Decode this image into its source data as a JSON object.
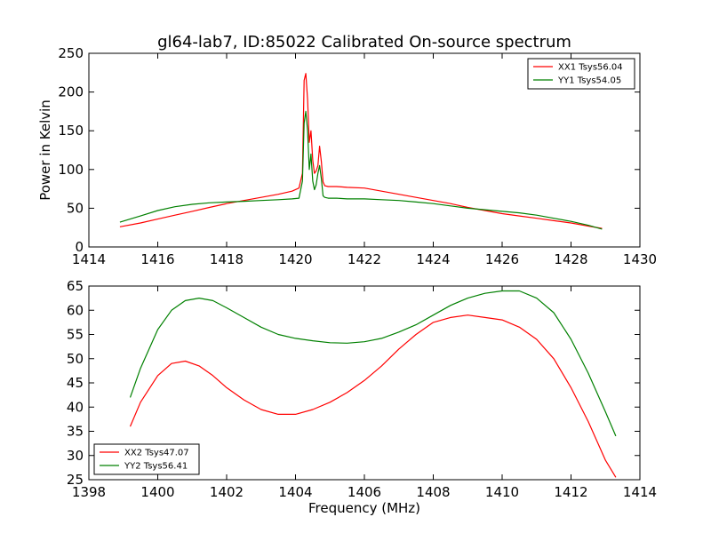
{
  "title": "gl64-lab7, ID:85022 Calibrated On-source spectrum",
  "chart_data": [
    {
      "type": "line",
      "title": "",
      "xlabel": "",
      "ylabel": "Power in Kelvin",
      "xlim": [
        1414,
        1430
      ],
      "ylim": [
        0,
        250
      ],
      "xticks": [
        "1414",
        "1416",
        "1418",
        "1420",
        "1422",
        "1424",
        "1426",
        "1428",
        "1430"
      ],
      "yticks": [
        "0",
        "50",
        "100",
        "150",
        "200",
        "250"
      ],
      "grid": false,
      "legend": "top-right",
      "series": [
        {
          "name": "XX1 Tsys56.04",
          "color": "#ff0000",
          "x": [
            1414.9,
            1415.5,
            1416.0,
            1416.5,
            1417.0,
            1417.5,
            1418.0,
            1418.5,
            1419.0,
            1419.5,
            1419.9,
            1420.1,
            1420.2,
            1420.25,
            1420.3,
            1420.35,
            1420.4,
            1420.45,
            1420.5,
            1420.55,
            1420.6,
            1420.65,
            1420.7,
            1420.75,
            1420.8,
            1420.85,
            1420.95,
            1421.2,
            1421.5,
            1422.0,
            1422.5,
            1423.0,
            1423.5,
            1424.0,
            1424.5,
            1425.0,
            1425.5,
            1426.0,
            1426.5,
            1427.0,
            1427.5,
            1428.0,
            1428.5,
            1428.9
          ],
          "y": [
            26,
            31,
            36,
            41,
            46,
            51,
            56,
            60,
            64,
            68,
            72,
            76,
            95,
            215,
            224,
            190,
            135,
            150,
            112,
            95,
            98,
            105,
            130,
            110,
            84,
            79,
            78,
            78,
            77,
            76,
            72,
            68,
            64,
            60,
            56,
            51,
            47,
            43,
            40,
            37,
            34,
            31,
            27,
            24
          ]
        },
        {
          "name": "YY1 Tsys54.05",
          "color": "#008000",
          "x": [
            1414.9,
            1415.5,
            1416.0,
            1416.5,
            1417.0,
            1417.5,
            1418.0,
            1418.5,
            1419.0,
            1419.5,
            1419.9,
            1420.1,
            1420.2,
            1420.25,
            1420.3,
            1420.35,
            1420.4,
            1420.45,
            1420.5,
            1420.55,
            1420.6,
            1420.65,
            1420.7,
            1420.75,
            1420.8,
            1420.85,
            1420.95,
            1421.2,
            1421.5,
            1422.0,
            1422.5,
            1423.0,
            1423.5,
            1424.0,
            1424.5,
            1425.0,
            1425.5,
            1426.0,
            1426.5,
            1427.0,
            1427.5,
            1428.0,
            1428.5,
            1428.9
          ],
          "y": [
            32,
            40,
            47,
            52,
            55,
            57,
            58,
            59,
            60,
            61,
            62,
            63,
            85,
            160,
            175,
            150,
            100,
            120,
            85,
            74,
            80,
            95,
            105,
            88,
            66,
            64,
            63,
            63,
            62,
            62,
            61,
            60,
            58,
            56,
            53,
            50,
            48,
            46,
            44,
            41,
            37,
            33,
            28,
            23
          ]
        }
      ]
    },
    {
      "type": "line",
      "title": "",
      "xlabel": "Frequency (MHz)",
      "ylabel": "",
      "xlim": [
        1398,
        1414
      ],
      "ylim": [
        25,
        65
      ],
      "xticks": [
        "1398",
        "1400",
        "1402",
        "1404",
        "1406",
        "1408",
        "1410",
        "1412",
        "1414"
      ],
      "yticks": [
        "25",
        "30",
        "35",
        "40",
        "45",
        "50",
        "55",
        "60",
        "65"
      ],
      "grid": false,
      "legend": "bottom-left",
      "series": [
        {
          "name": "XX2 Tsys47.07",
          "color": "#ff0000",
          "x": [
            1399.2,
            1399.5,
            1400.0,
            1400.4,
            1400.8,
            1401.2,
            1401.6,
            1402.0,
            1402.5,
            1403.0,
            1403.5,
            1404.0,
            1404.5,
            1405.0,
            1405.5,
            1406.0,
            1406.5,
            1407.0,
            1407.5,
            1408.0,
            1408.5,
            1409.0,
            1409.5,
            1410.0,
            1410.5,
            1411.0,
            1411.5,
            1412.0,
            1412.5,
            1413.0,
            1413.3
          ],
          "y": [
            36,
            41,
            46.5,
            49,
            49.5,
            48.5,
            46.5,
            44,
            41.5,
            39.5,
            38.5,
            38.5,
            39.5,
            41,
            43,
            45.5,
            48.5,
            52,
            55,
            57.5,
            58.5,
            59,
            58.5,
            58,
            56.5,
            54,
            50,
            44,
            37,
            29,
            25.5
          ]
        },
        {
          "name": "YY2 Tsys56.41",
          "color": "#008000",
          "x": [
            1399.2,
            1399.5,
            1400.0,
            1400.4,
            1400.8,
            1401.2,
            1401.6,
            1402.0,
            1402.5,
            1403.0,
            1403.5,
            1404.0,
            1404.5,
            1405.0,
            1405.5,
            1406.0,
            1406.5,
            1407.0,
            1407.5,
            1408.0,
            1408.5,
            1409.0,
            1409.5,
            1410.0,
            1410.5,
            1411.0,
            1411.5,
            1412.0,
            1412.5,
            1413.0,
            1413.3
          ],
          "y": [
            42,
            48,
            56,
            60,
            62,
            62.5,
            62,
            60.5,
            58.5,
            56.5,
            55,
            54.2,
            53.7,
            53.3,
            53.2,
            53.5,
            54.2,
            55.5,
            57,
            59,
            61,
            62.5,
            63.5,
            64,
            64,
            62.5,
            59.5,
            54,
            47,
            39,
            34
          ]
        }
      ]
    }
  ]
}
